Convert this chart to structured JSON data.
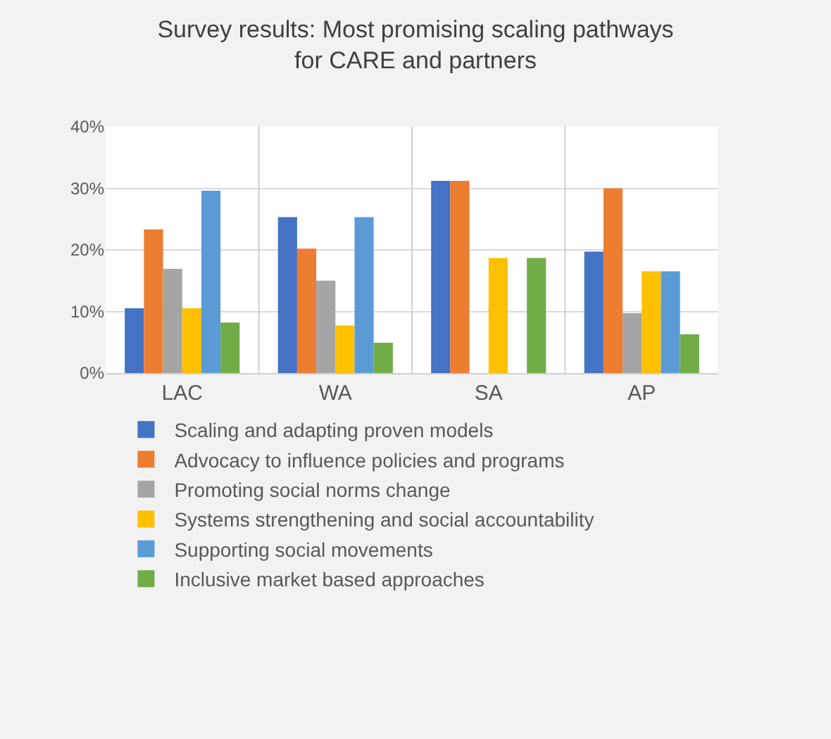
{
  "chart_data": {
    "type": "bar",
    "title": "Survey results: Most promising scaling pathways\nfor CARE and partners",
    "categories": [
      "LAC",
      "WA",
      "SA",
      "AP"
    ],
    "series": [
      {
        "name": "Scaling and adapting proven models",
        "color": "#4472c4",
        "values": [
          10.5,
          25.3,
          31.2,
          19.7
        ]
      },
      {
        "name": "Advocacy to influence policies and programs",
        "color": "#ed7d31",
        "values": [
          23.3,
          20.2,
          31.2,
          30
        ]
      },
      {
        "name": "Promoting social norms change",
        "color": "#a5a5a5",
        "values": [
          16.9,
          15,
          0,
          9.7
        ]
      },
      {
        "name": "Systems strengthening and social accountability",
        "color": "#ffc000",
        "values": [
          10.5,
          7.7,
          18.7,
          16.5
        ]
      },
      {
        "name": "Supporting social movements",
        "color": "#5b9bd5",
        "values": [
          29.6,
          25.3,
          0,
          16.5
        ]
      },
      {
        "name": "Inclusive market based approaches",
        "color": "#70ad47",
        "values": [
          8.2,
          4.9,
          18.7,
          6.3
        ]
      }
    ],
    "ylim": [
      0,
      40
    ],
    "yticks": [
      {
        "value": 0,
        "label": "0%"
      },
      {
        "value": 10,
        "label": "10%"
      },
      {
        "value": 20,
        "label": "20%"
      },
      {
        "value": 30,
        "label": "30%"
      },
      {
        "value": 40,
        "label": "40%"
      }
    ],
    "grid": true,
    "legend": "bottom"
  }
}
